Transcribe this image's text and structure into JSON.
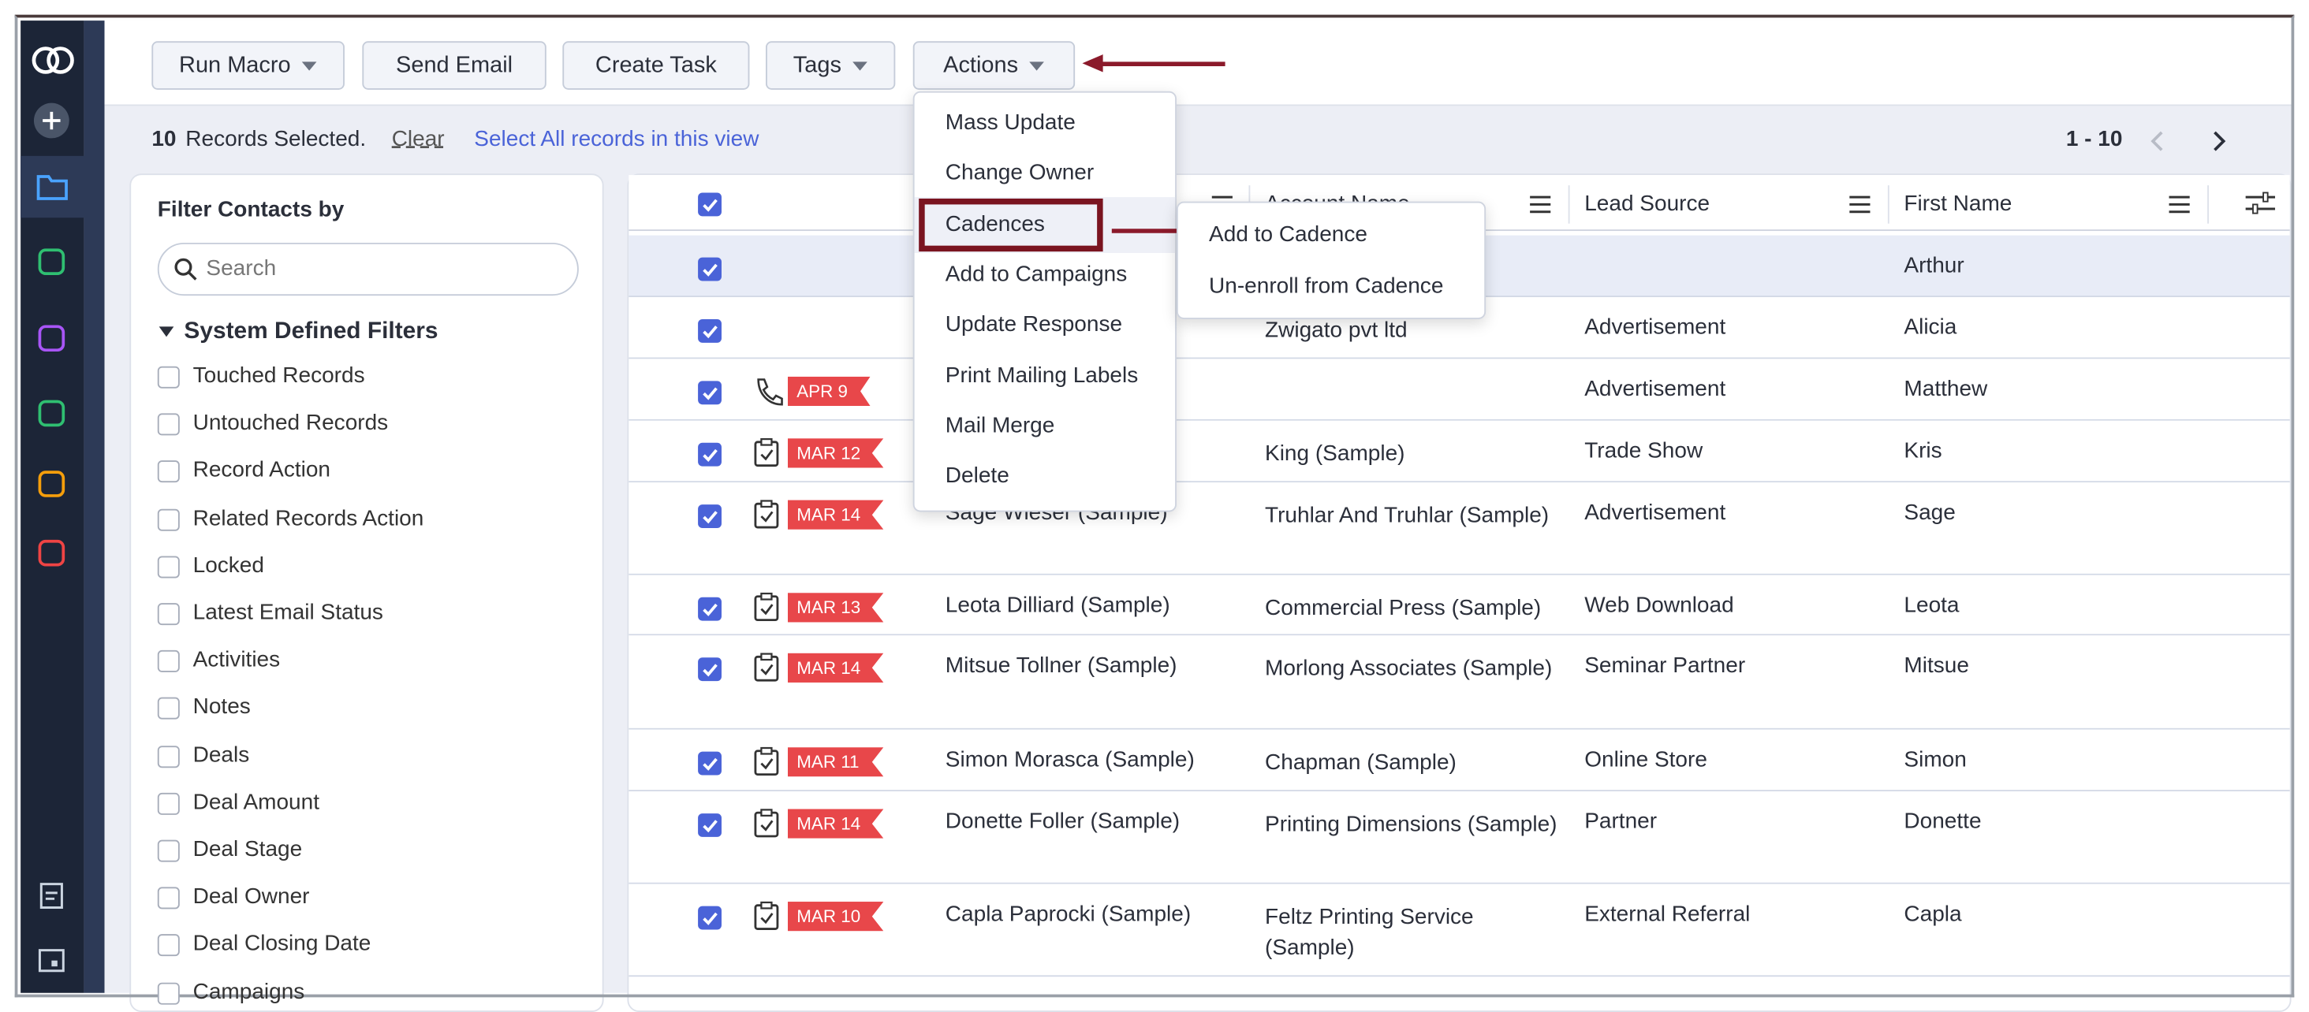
{
  "toolbar": {
    "buttons": [
      "Run Macro",
      "Send Email",
      "Create Task",
      "Tags",
      "Actions"
    ]
  },
  "selection": {
    "count": "10",
    "text": "Records Selected.",
    "clear": "Clear",
    "select_all": "Select All records in this view",
    "pagination": "1 - 10"
  },
  "filter_panel": {
    "title": "Filter Contacts by",
    "search_placeholder": "Search",
    "section": "System Defined Filters",
    "filters": [
      "Touched Records",
      "Untouched Records",
      "Record Action",
      "Related Records Action",
      "Locked",
      "Latest Email Status",
      "Activities",
      "Notes",
      "Deals",
      "Deal Amount",
      "Deal Stage",
      "Deal Owner",
      "Deal Closing Date",
      "Campaigns"
    ]
  },
  "table": {
    "columns": [
      "Account Name",
      "Lead Source",
      "First Name"
    ],
    "rows": [
      {
        "activity": null,
        "tag": null,
        "contact": null,
        "account": null,
        "lead_source": null,
        "first_name": "Arthur"
      },
      {
        "activity": null,
        "tag": null,
        "contact": null,
        "account": "Zwigato pvt ltd",
        "lead_source": "Advertisement",
        "first_name": "Alicia"
      },
      {
        "activity": "call",
        "tag": "APR 9",
        "contact": null,
        "account": null,
        "lead_source": "Advertisement",
        "first_name": "Matthew"
      },
      {
        "activity": "task",
        "tag": "MAR 12",
        "contact": null,
        "account": "King (Sample)",
        "lead_source": "Trade Show",
        "first_name": "Kris"
      },
      {
        "activity": "task",
        "tag": "MAR 14",
        "contact": "Sage Wieser (Sample)",
        "account": "Truhlar And Truhlar (Sample)",
        "lead_source": "Advertisement",
        "first_name": "Sage"
      },
      {
        "activity": "task",
        "tag": "MAR 13",
        "contact": "Leota Dilliard (Sample)",
        "account": "Commercial Press (Sample)",
        "lead_source": "Web Download",
        "first_name": "Leota"
      },
      {
        "activity": "task",
        "tag": "MAR 14",
        "contact": "Mitsue Tollner (Sample)",
        "account": "Morlong Associates (Sample)",
        "lead_source": "Seminar Partner",
        "first_name": "Mitsue"
      },
      {
        "activity": "task",
        "tag": "MAR 11",
        "contact": "Simon Morasca (Sample)",
        "account": "Chapman (Sample)",
        "lead_source": "Online Store",
        "first_name": "Simon"
      },
      {
        "activity": "task",
        "tag": "MAR 14",
        "contact": "Donette Foller (Sample)",
        "account": "Printing Dimensions (Sample)",
        "lead_source": "Partner",
        "first_name": "Donette"
      },
      {
        "activity": "task",
        "tag": "MAR 10",
        "contact": "Capla Paprocki (Sample)",
        "account": "Feltz Printing Service (Sample)",
        "lead_source": "External Referral",
        "first_name": "Capla"
      }
    ]
  },
  "actions_menu": {
    "items": [
      "Mass Update",
      "Change Owner",
      "Cadences",
      "Add to Campaigns",
      "Update Response",
      "Print Mailing Labels",
      "Mail Merge",
      "Delete"
    ],
    "submenu": [
      "Add to Cadence",
      "Un-enroll from Cadence"
    ]
  }
}
